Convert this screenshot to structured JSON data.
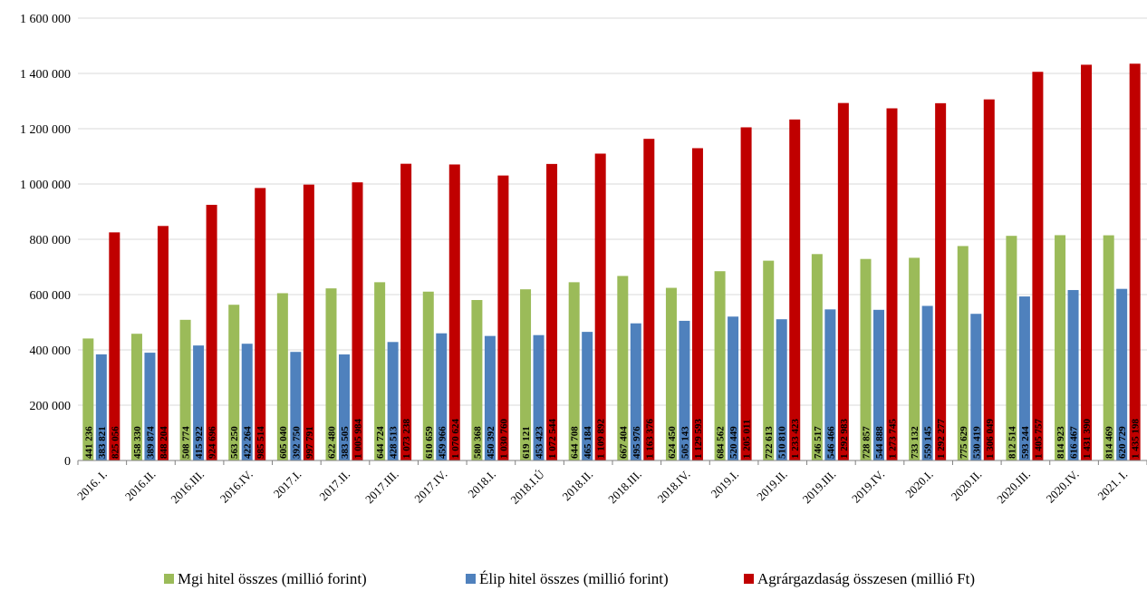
{
  "chart_data": {
    "type": "bar",
    "categories": [
      "2016. I.",
      "2016.II.",
      "2016.III.",
      "2016.IV.",
      "2017.I.",
      "2017.II.",
      "2017.III.",
      "2017.IV.",
      "2018.I.",
      "2018.I.Ú",
      "2018.II.",
      "2018.III.",
      "2018.IV.",
      "2019.I.",
      "2019.II.",
      "2019.III.",
      "2019.IV.",
      "2020.I.",
      "2020.II.",
      "2020.III.",
      "2020.IV.",
      "2021. I."
    ],
    "series": [
      {
        "name": "Mgi hitel összes (millió forint)",
        "color": "#9bbb59",
        "values": [
          441236,
          458330,
          508774,
          563250,
          605040,
          622480,
          644724,
          610659,
          580368,
          619121,
          644708,
          667404,
          624450,
          684562,
          722613,
          746517,
          728857,
          733132,
          775629,
          812514,
          814923,
          814469
        ],
        "labels": [
          "441 236",
          "458 330",
          "508 774",
          "563 250",
          "605 040",
          "622 480",
          "644 724",
          "610 659",
          "580 368",
          "619 121",
          "644 708",
          "667 404",
          "624 450",
          "684 562",
          "722 613",
          "746 517",
          "728 857",
          "733 132",
          "775 629",
          "812 514",
          "814 923",
          "814 469"
        ]
      },
      {
        "name": "Élip hitel összes (millió forint)",
        "color": "#4f81bd",
        "values": [
          383821,
          389874,
          415922,
          422264,
          392750,
          383505,
          428513,
          459966,
          450392,
          453423,
          465184,
          495976,
          505143,
          520449,
          510810,
          546466,
          544888,
          559145,
          530419,
          593244,
          616467,
          620729
        ],
        "labels": [
          "383 821",
          "389 874",
          "415 922",
          "422 264",
          "392 750",
          "383 505",
          "428 513",
          "459 966",
          "450 392",
          "453 423",
          "465 184",
          "495 976",
          "505 143",
          "520 449",
          "510 810",
          "546 466",
          "544 888",
          "559 145",
          "530 419",
          "593 244",
          "616 467",
          "620 729"
        ]
      },
      {
        "name": "Agrárgazdaság összesen (millió Ft)",
        "color": "#c00000",
        "values": [
          825056,
          848204,
          924696,
          985514,
          997791,
          1005984,
          1073238,
          1070624,
          1030760,
          1072544,
          1109892,
          1163376,
          1129593,
          1205011,
          1233423,
          1292983,
          1273745,
          1292277,
          1306049,
          1405757,
          1431390,
          1435198
        ],
        "labels": [
          "825 056",
          "848 204",
          "924 696",
          "985 514",
          "997 791",
          "1 005 984",
          "1 073 238",
          "1 070 624",
          "1 030 760",
          "1 072 544",
          "1 109 892",
          "1 163 376",
          "1 129 593",
          "1 205 011",
          "1 233 423",
          "1 292 983",
          "1 273 745",
          "1 292 277",
          "1 306 049",
          "1 405 757",
          "1 431 390",
          "1 435 198"
        ]
      }
    ],
    "y_ticks": [
      0,
      200000,
      400000,
      600000,
      800000,
      1000000,
      1200000,
      1400000,
      1600000
    ],
    "y_tick_labels": [
      "0",
      "200 000",
      "400 000",
      "600 000",
      "800 000",
      "1 000 000",
      "1 200 000",
      "1 400 000",
      "1 600 000"
    ],
    "ylim": [
      0,
      1600000
    ],
    "grid": true,
    "legend_position": "bottom"
  }
}
